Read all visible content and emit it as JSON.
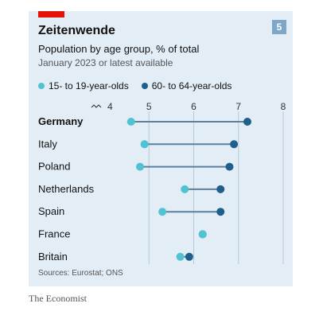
{
  "header": {
    "title": "Zeitenwende",
    "subtitle": "Population by age group, % of total",
    "note": "January 2023 or latest available",
    "badge": "5"
  },
  "source": "Sources: Eurostat; ONS",
  "credit": "The Economist",
  "colors": {
    "panel_background": "#e3edf5",
    "accent_red": "#e3120b",
    "series_young": "#4fc3d1",
    "series_old": "#1f5f8b",
    "connector": "#5d7f99",
    "badge": "#7ea6c9"
  },
  "chart_data": {
    "type": "dumbbell",
    "xlim": [
      4,
      8
    ],
    "xticks": [
      "4",
      "5",
      "6",
      "7",
      "8"
    ],
    "axis_break": true,
    "grid": true,
    "legend_position": "top-left",
    "categories": [
      "Germany",
      "Italy",
      "Poland",
      "Netherlands",
      "Spain",
      "France",
      "Britain"
    ],
    "highlight": "Germany",
    "series": [
      {
        "name": "15- to 19-year-olds",
        "values": [
          4.6,
          4.9,
          4.8,
          5.8,
          5.3,
          6.2,
          5.7
        ]
      },
      {
        "name": "60- to 64-year-olds",
        "values": [
          7.2,
          6.9,
          6.8,
          6.6,
          6.6,
          6.2,
          5.9
        ]
      }
    ]
  }
}
